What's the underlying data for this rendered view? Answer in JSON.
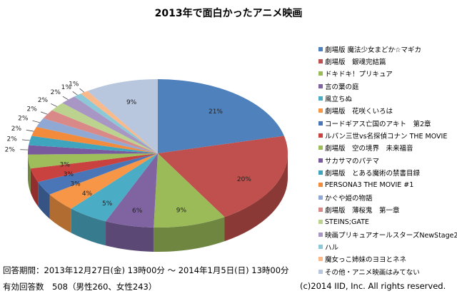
{
  "chart_data": {
    "type": "pie",
    "title": "2013年で面白かったアニメ映画",
    "categories": [
      "劇場版 魔法少女まどか☆マギカ",
      "劇場版　銀魂完結篇",
      "ドキドキ！プリキュア",
      "言の葉の庭",
      "風立ちぬ",
      "劇場版　花咲くいろは",
      "コードギアス亡国のアキト　第2章",
      "ルパン三世vs名探偵コナン THE MOVIE",
      "劇場版　空の境界　未来福音",
      "サカサマのパテマ",
      "劇場版　とある魔術の禁書目録",
      "PERSONA3 THE MOVIE #1",
      "かぐや姫の物語",
      "劇場版　薄桜鬼　第一章",
      "STEINS;GATE",
      "映画プリキュアオールスターズNewStage2",
      "ハル",
      "魔女っこ姉妹のヨヨとネネ",
      "その他・アニメ映画はみてない"
    ],
    "values": [
      21,
      20,
      9,
      6,
      5,
      4,
      3,
      3,
      3,
      2,
      2,
      2,
      2,
      2,
      2,
      2,
      1,
      1,
      9
    ],
    "labels": [
      "21%",
      "20%",
      "9%",
      "6%",
      "5%",
      "4%",
      "3%",
      "3%",
      "3%",
      "2%",
      "2%",
      "2%",
      "2%",
      "2%",
      "2%",
      "2%",
      "1%",
      "1%",
      "9%"
    ],
    "colors": [
      "#4F81BD",
      "#C0504D",
      "#9BBB59",
      "#8064A2",
      "#4BACC6",
      "#F79646",
      "#4A76B8",
      "#C9423F",
      "#9DBE5A",
      "#7A5A9E",
      "#3FA5BE",
      "#F28C3C",
      "#8FA8D4",
      "#D98A88",
      "#BCD38F",
      "#A896C4",
      "#8CC8D8",
      "#F9B98A",
      "#B8C6DE"
    ],
    "style": "3d",
    "legend_position": "right"
  },
  "footer": {
    "period": "回答期間：2013年12月27日(金) 13時00分 ～ 2014年1月5日(日) 13時00分",
    "responses": "有効回答数　508（男性260、女性243）",
    "copyright": "(c)2014 IID, Inc. All rights reserved."
  }
}
